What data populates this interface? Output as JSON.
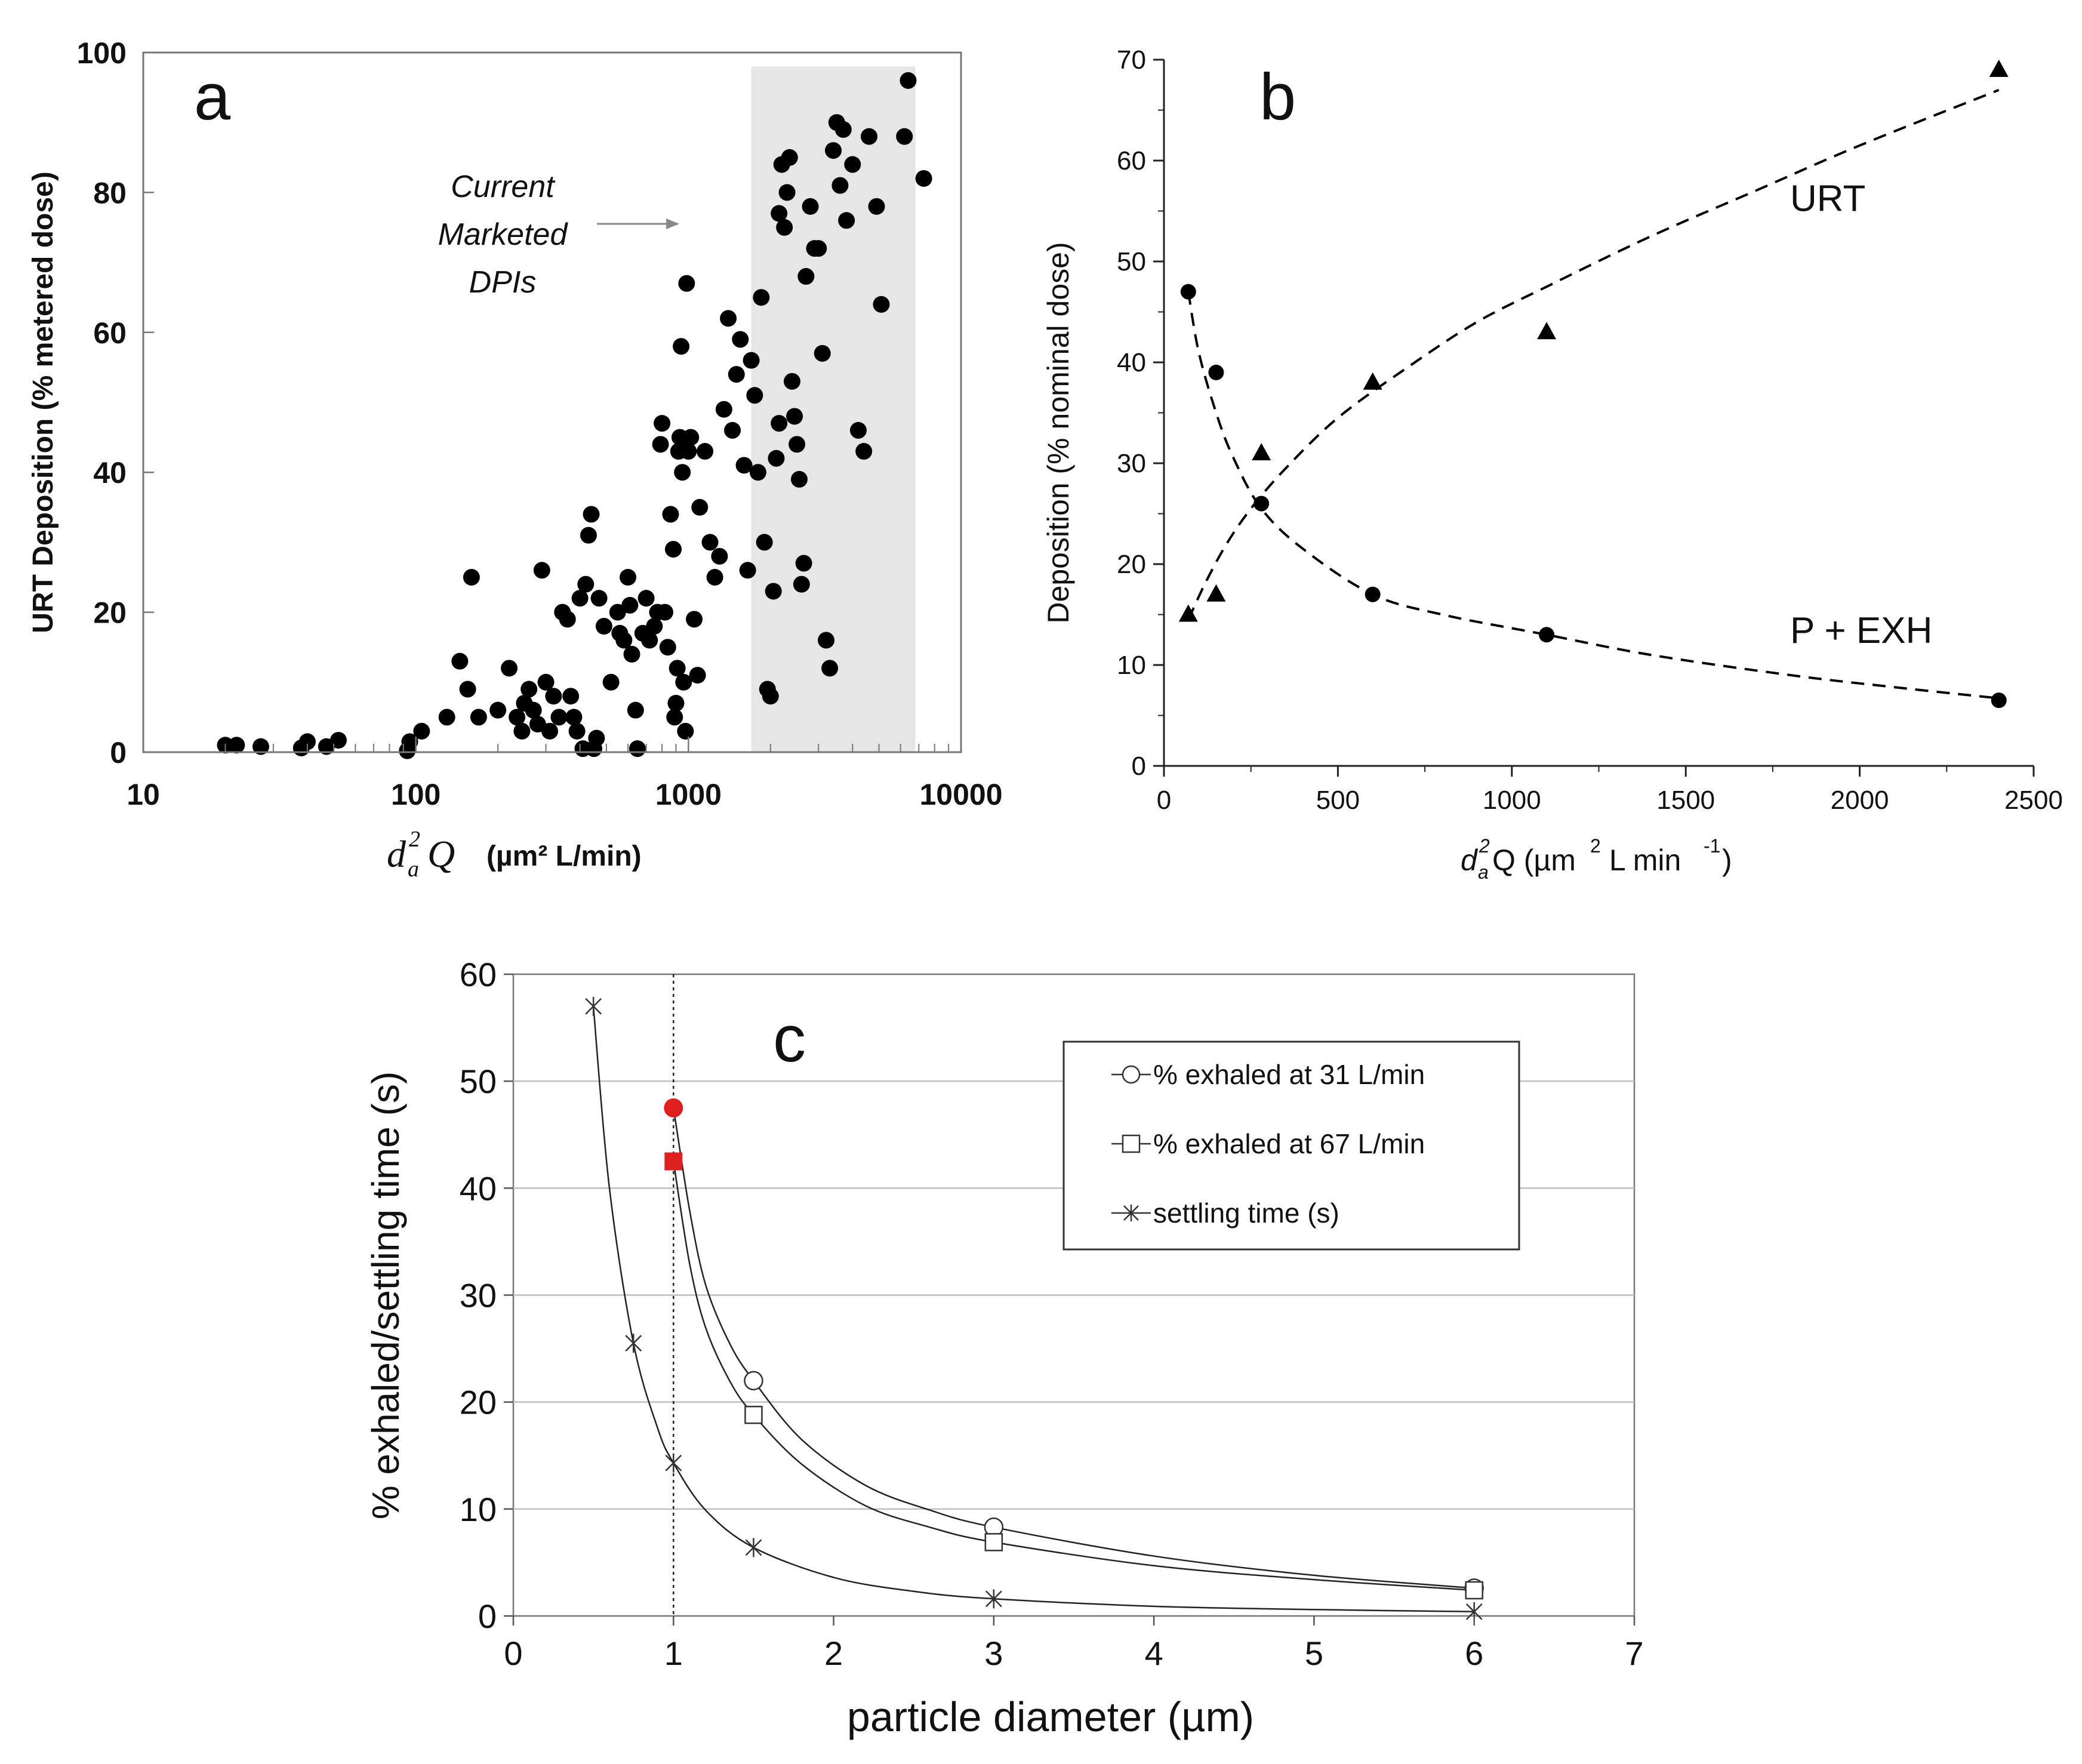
{
  "chart_data": [
    {
      "type": "scatter",
      "panel_label": "a",
      "ylabel": "URT Deposition (% metered dose)",
      "xlabel_symbol_main": "d",
      "xlabel_symbol_sup": "2",
      "xlabel_symbol_sub": "a",
      "xlabel_symbol_q": "Q",
      "xlabel_units": "(µm² L/min)",
      "x_scale": "log",
      "xlim": [
        10,
        10000
      ],
      "ylim": [
        0,
        100
      ],
      "x_ticks": [
        10,
        100,
        1000,
        10000
      ],
      "x_tick_labels": [
        "10",
        "100",
        "1000",
        "10000"
      ],
      "y_ticks": [
        0,
        20,
        40,
        60,
        80,
        100
      ],
      "shaded_region": {
        "x_start": 1700,
        "x_end": 6800,
        "y_top": 98,
        "color": "#e6e6e6"
      },
      "annotation": {
        "lines": [
          "Current",
          "Marketed",
          "DPIs"
        ],
        "points_to_x": 1700,
        "points_to_y": 75
      },
      "points": [
        [
          20,
          1
        ],
        [
          22,
          1
        ],
        [
          27,
          0.8
        ],
        [
          38,
          0.6
        ],
        [
          40,
          1.5
        ],
        [
          47,
          0.8
        ],
        [
          52,
          1.7
        ],
        [
          93,
          0.2
        ],
        [
          95,
          1.5
        ],
        [
          105,
          3
        ],
        [
          130,
          5
        ],
        [
          145,
          13
        ],
        [
          155,
          9
        ],
        [
          160,
          25
        ],
        [
          170,
          5
        ],
        [
          200,
          6
        ],
        [
          220,
          12
        ],
        [
          235,
          5
        ],
        [
          245,
          3
        ],
        [
          250,
          7
        ],
        [
          260,
          9
        ],
        [
          270,
          6
        ],
        [
          280,
          4
        ],
        [
          290,
          26
        ],
        [
          300,
          10
        ],
        [
          310,
          3
        ],
        [
          320,
          8
        ],
        [
          335,
          5
        ],
        [
          345,
          20
        ],
        [
          360,
          19
        ],
        [
          370,
          8
        ],
        [
          380,
          5
        ],
        [
          390,
          3
        ],
        [
          400,
          22
        ],
        [
          410,
          0.5
        ],
        [
          420,
          24
        ],
        [
          430,
          31
        ],
        [
          440,
          34
        ],
        [
          450,
          0.5
        ],
        [
          460,
          2
        ],
        [
          470,
          22
        ],
        [
          490,
          18
        ],
        [
          520,
          10
        ],
        [
          550,
          20
        ],
        [
          560,
          17
        ],
        [
          580,
          16
        ],
        [
          600,
          25
        ],
        [
          610,
          21
        ],
        [
          620,
          14
        ],
        [
          640,
          6
        ],
        [
          650,
          0.5
        ],
        [
          680,
          17
        ],
        [
          700,
          22
        ],
        [
          720,
          16
        ],
        [
          750,
          18
        ],
        [
          770,
          20
        ],
        [
          790,
          44
        ],
        [
          800,
          47
        ],
        [
          820,
          20
        ],
        [
          840,
          15
        ],
        [
          860,
          34
        ],
        [
          880,
          29
        ],
        [
          890,
          5
        ],
        [
          900,
          7
        ],
        [
          910,
          12
        ],
        [
          920,
          43
        ],
        [
          930,
          45
        ],
        [
          940,
          58
        ],
        [
          950,
          40
        ],
        [
          960,
          10
        ],
        [
          975,
          3
        ],
        [
          985,
          67
        ],
        [
          1000,
          43
        ],
        [
          1020,
          45
        ],
        [
          1050,
          19
        ],
        [
          1080,
          11
        ],
        [
          1100,
          35
        ],
        [
          1150,
          43
        ],
        [
          1200,
          30
        ],
        [
          1250,
          25
        ],
        [
          1300,
          28
        ],
        [
          1350,
          49
        ],
        [
          1400,
          62
        ],
        [
          1450,
          46
        ],
        [
          1500,
          54
        ],
        [
          1550,
          59
        ],
        [
          1600,
          41
        ],
        [
          1650,
          26
        ],
        [
          1700,
          56
        ],
        [
          1750,
          51
        ],
        [
          1800,
          40
        ],
        [
          1850,
          65
        ],
        [
          1900,
          30
        ],
        [
          1950,
          9
        ],
        [
          2000,
          8
        ],
        [
          2050,
          23
        ],
        [
          2100,
          42
        ],
        [
          2150,
          77
        ],
        [
          2200,
          84
        ],
        [
          2250,
          75
        ],
        [
          2300,
          80
        ],
        [
          2350,
          85
        ],
        [
          2400,
          53
        ],
        [
          2450,
          48
        ],
        [
          2500,
          44
        ],
        [
          2550,
          39
        ],
        [
          2600,
          24
        ],
        [
          2700,
          68
        ],
        [
          2800,
          78
        ],
        [
          2900,
          72
        ],
        [
          3000,
          72
        ],
        [
          3100,
          57
        ],
        [
          3200,
          16
        ],
        [
          3300,
          12
        ],
        [
          3400,
          86
        ],
        [
          3500,
          90
        ],
        [
          3600,
          81
        ],
        [
          3700,
          89
        ],
        [
          3800,
          76
        ],
        [
          4000,
          84
        ],
        [
          4200,
          46
        ],
        [
          4400,
          43
        ],
        [
          4600,
          88
        ],
        [
          4900,
          78
        ],
        [
          5100,
          64
        ],
        [
          6200,
          88
        ],
        [
          6400,
          96
        ],
        [
          7300,
          82
        ],
        [
          2150,
          47
        ],
        [
          2650,
          27
        ]
      ]
    },
    {
      "type": "scatter",
      "panel_label": "b",
      "ylabel": "Deposition (% nominal dose)",
      "xlabel_main": "d",
      "xlabel_sup": "2",
      "xlabel_sub": "a",
      "xlabel_rest": "Q (µm",
      "xlabel_rest_sup": "2",
      "xlabel_rest2": " L min",
      "xlabel_rest2_sup": "-1",
      "xlabel_close": ")",
      "xlim": [
        0,
        2500
      ],
      "ylim": [
        0,
        70
      ],
      "x_ticks": [
        0,
        500,
        1000,
        1500,
        2000,
        2500
      ],
      "y_ticks": [
        0,
        10,
        20,
        30,
        40,
        50,
        60,
        70
      ],
      "series": [
        {
          "name": "URT",
          "marker": "triangle",
          "x": [
            70,
            150,
            280,
            600,
            1100,
            2400
          ],
          "y": [
            15,
            17,
            31,
            38,
            43,
            69
          ],
          "fit_x": [
            70,
            120,
            180,
            250,
            350,
            500,
            700,
            900,
            1100,
            1400,
            1700,
            2000,
            2400
          ],
          "fit_y": [
            14.5,
            18.2,
            22,
            25.5,
            29.5,
            34.5,
            39.5,
            44,
            47.5,
            52.5,
            57,
            61.5,
            67
          ]
        },
        {
          "name": "P + EXH",
          "marker": "circle",
          "x": [
            70,
            150,
            280,
            600,
            1100,
            2400
          ],
          "y": [
            47,
            39,
            26,
            17,
            13,
            6.5
          ],
          "fit_x": [
            70,
            100,
            150,
            200,
            280,
            400,
            600,
            800,
            1100,
            1400,
            1800,
            2100,
            2400
          ],
          "fit_y": [
            47,
            41,
            35,
            30.5,
            25.5,
            21.5,
            17,
            15,
            13,
            11,
            9,
            7.8,
            6.7
          ]
        }
      ],
      "labels": [
        {
          "text": "URT",
          "x": 1800,
          "y": 55
        },
        {
          "text": "P + EXH",
          "x": 1800,
          "y": 12.2
        }
      ]
    },
    {
      "type": "line",
      "panel_label": "c",
      "ylabel": "% exhaled/settling time (s)",
      "xlabel": "particle diameter (µm)",
      "xlim": [
        0,
        7
      ],
      "ylim": [
        0,
        60
      ],
      "x_ticks": [
        0,
        1,
        2,
        3,
        4,
        5,
        6,
        7
      ],
      "y_ticks": [
        0,
        10,
        20,
        30,
        40,
        50,
        60
      ],
      "gridlines": true,
      "vertical_reference_x": 1,
      "series": [
        {
          "name": "% exhaled at 31 L/min",
          "marker": "open-circle",
          "x": [
            1.5,
            3,
            6
          ],
          "y": [
            22,
            8.3,
            2.6
          ],
          "curve_x": [
            1,
            1.1,
            1.2,
            1.35,
            1.5,
            1.8,
            2.2,
            2.6,
            3,
            4,
            5,
            6
          ],
          "curve_y": [
            47.5,
            38,
            31,
            25.5,
            22,
            16.5,
            12.2,
            9.9,
            8.3,
            5.6,
            3.8,
            2.6
          ]
        },
        {
          "name": "% exhaled at 67 L/min",
          "marker": "open-square",
          "x": [
            1.5,
            3,
            6
          ],
          "y": [
            18.8,
            6.9,
            2.4
          ],
          "curve_x": [
            1,
            1.1,
            1.2,
            1.35,
            1.5,
            1.8,
            2.2,
            2.6,
            3,
            4,
            5,
            6
          ],
          "curve_y": [
            42.5,
            33,
            27,
            22,
            18.8,
            14.2,
            10.3,
            8.3,
            6.9,
            4.7,
            3.4,
            2.4
          ]
        },
        {
          "name": "settling time (s)",
          "marker": "asterisk",
          "x": [
            0.5,
            0.75,
            1,
            1.5,
            3,
            6
          ],
          "y": [
            57,
            25.5,
            14.3,
            6.4,
            1.6,
            0.4
          ],
          "curve_x": [
            0.5,
            0.6,
            0.75,
            0.9,
            1,
            1.2,
            1.5,
            2,
            2.5,
            3,
            4,
            5,
            6
          ],
          "curve_y": [
            57,
            40,
            25.5,
            17.6,
            14.3,
            9.9,
            6.4,
            3.6,
            2.3,
            1.6,
            0.9,
            0.6,
            0.4
          ]
        }
      ],
      "highlight_points": [
        {
          "x": 1,
          "y": 47.5,
          "marker": "filled-circle",
          "color": "#e02020"
        },
        {
          "x": 1,
          "y": 42.5,
          "marker": "filled-square",
          "color": "#e02020"
        }
      ],
      "legend": {
        "placement": "top-right",
        "entries": [
          "% exhaled at 31 L/min",
          "% exhaled at 67 L/min",
          "settling time (s)"
        ]
      }
    }
  ]
}
